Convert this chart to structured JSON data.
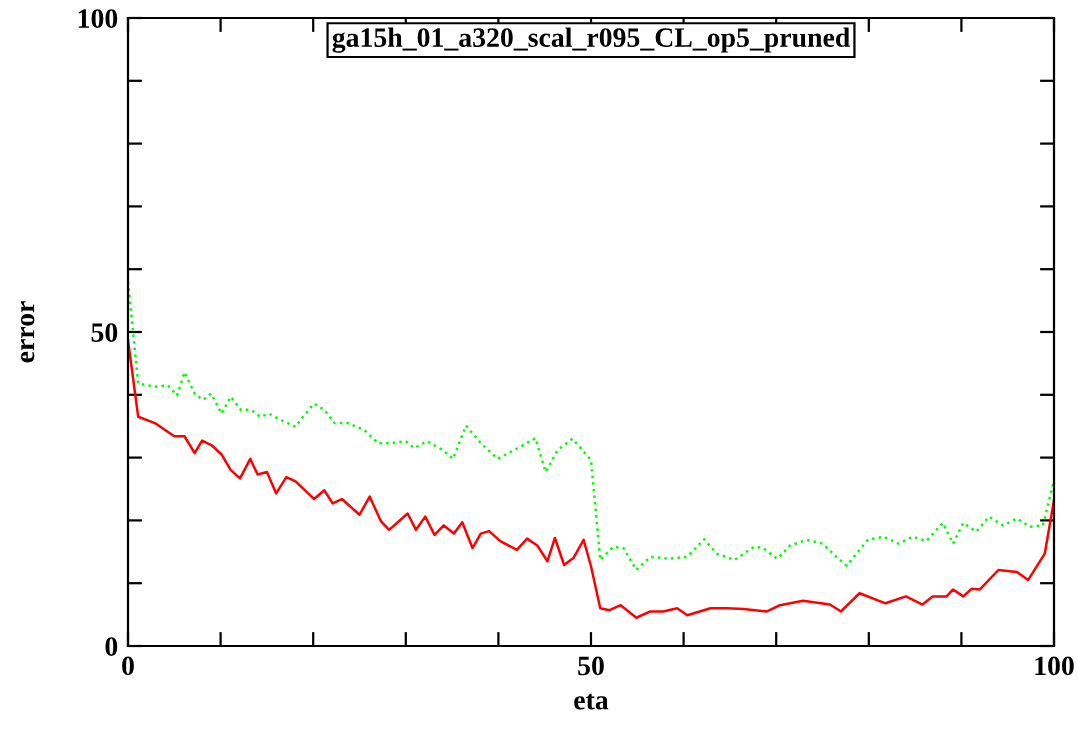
{
  "chart_data": {
    "type": "line",
    "title": "ga15h_01_a320_scal_r095_CL_op5_pruned",
    "xlabel": "eta",
    "ylabel": "error",
    "xlim": [
      0,
      100
    ],
    "ylim": [
      0,
      100
    ],
    "xticks": [
      0,
      {
        "value": 10,
        "label": null
      },
      {
        "value": 20,
        "label": null
      },
      {
        "value": 30,
        "label": null
      },
      {
        "value": 40,
        "label": null
      },
      50,
      {
        "value": 60,
        "label": null
      },
      {
        "value": 70,
        "label": null
      },
      {
        "value": 80,
        "label": null
      },
      {
        "value": 90,
        "label": null
      },
      100
    ],
    "yticks": [
      0,
      {
        "value": 10,
        "label": null
      },
      {
        "value": 20,
        "label": null
      },
      {
        "value": 30,
        "label": null
      },
      {
        "value": 40,
        "label": null
      },
      50,
      {
        "value": 60,
        "label": null
      },
      {
        "value": 70,
        "label": null
      },
      {
        "value": 80,
        "label": null
      },
      {
        "value": 90,
        "label": null
      },
      100
    ],
    "grid": false,
    "series": [
      {
        "color": "#ff0000",
        "line_style": "solid",
        "x": [
          0,
          1.1,
          2.9,
          5.0,
          6.1,
          7.2,
          8.0,
          9.0,
          10.1,
          11.1,
          12.1,
          13.2,
          14.0,
          15.0,
          16.0,
          17.1,
          18.1,
          20.1,
          21.2,
          22.1,
          23.1,
          25.0,
          26.1,
          27.3,
          28.2,
          30.2,
          31.1,
          32.1,
          33.1,
          34.1,
          35.2,
          36.1,
          37.2,
          38.1,
          39.0,
          40.2,
          42.0,
          43.1,
          44.2,
          45.3,
          46.1,
          47.1,
          48.1,
          49.2,
          50.0,
          51.0,
          52.0,
          53.2,
          54.9,
          56.4,
          57.8,
          59.3,
          60.4,
          62.9,
          64.7,
          66.5,
          69.0,
          70.4,
          72.9,
          75.8,
          77.0,
          79.0,
          81.8,
          84.0,
          85.8,
          86.9,
          88.4,
          89.1,
          90.2,
          91.1,
          92.0,
          94.0,
          96.0,
          97.2,
          99.0,
          100
        ],
        "values": [
          48.7,
          36.5,
          35.5,
          33.4,
          33.4,
          30.7,
          32.7,
          32.0,
          30.5,
          28.0,
          26.7,
          29.8,
          27.3,
          27.7,
          24.3,
          26.9,
          26.2,
          23.4,
          24.8,
          22.7,
          23.4,
          20.9,
          23.8,
          19.9,
          18.5,
          21.1,
          18.5,
          20.6,
          17.7,
          19.2,
          17.9,
          19.7,
          15.6,
          17.9,
          18.3,
          16.7,
          15.3,
          17.1,
          16.0,
          13.5,
          17.2,
          12.9,
          14.0,
          16.9,
          12.7,
          6.0,
          5.7,
          6.5,
          4.5,
          5.5,
          5.5,
          6.0,
          4.9,
          6.0,
          6.0,
          5.9,
          5.5,
          6.5,
          7.2,
          6.6,
          5.5,
          8.4,
          6.8,
          7.9,
          6.6,
          7.9,
          7.9,
          9.0,
          7.9,
          9.1,
          9.0,
          12.1,
          11.8,
          10.5,
          14.7,
          23.2
        ]
      },
      {
        "color": "#00ff00",
        "line_style": "dotted",
        "x": [
          0,
          1.1,
          2.9,
          4.3,
          5.3,
          6.1,
          7.2,
          8.1,
          9.0,
          10.1,
          11.1,
          12.2,
          13.3,
          14.3,
          15.2,
          16.5,
          18.1,
          19.0,
          20.1,
          21.2,
          22.3,
          23.7,
          25.5,
          27.0,
          28.4,
          30.0,
          30.9,
          32.3,
          34.0,
          35.1,
          36.5,
          38.1,
          39.9,
          41.7,
          44.0,
          45.1,
          46.4,
          48.0,
          50.0,
          51.0,
          52.4,
          53.5,
          54.9,
          56.4,
          58.5,
          60.4,
          62.2,
          63.6,
          65.5,
          67.6,
          68.6,
          70.1,
          71.5,
          73.3,
          75.0,
          76.5,
          77.6,
          79.9,
          81.6,
          83.2,
          84.8,
          86.2,
          88.0,
          89.1,
          90.2,
          91.6,
          93.0,
          94.5,
          96.0,
          97.4,
          98.8,
          100
        ],
        "values": [
          58,
          41.8,
          41.3,
          41.5,
          39.9,
          43.6,
          40.2,
          39.2,
          40.2,
          37.0,
          39.7,
          37.6,
          37.6,
          36.5,
          37.0,
          36.0,
          34.9,
          36.7,
          38.6,
          37.6,
          35.5,
          35.5,
          34.4,
          32.3,
          32.3,
          32.6,
          31.5,
          32.6,
          31.2,
          29.8,
          35.1,
          32.3,
          29.8,
          31.2,
          33.1,
          27.7,
          31.2,
          33.0,
          29.6,
          13.7,
          15.8,
          15.6,
          12.1,
          14.2,
          13.9,
          14.2,
          17.0,
          14.7,
          13.7,
          15.8,
          15.6,
          13.9,
          16.0,
          16.9,
          16.3,
          14.2,
          12.8,
          16.9,
          17.4,
          16.3,
          17.4,
          16.7,
          19.6,
          16.3,
          19.6,
          18.2,
          20.6,
          19.2,
          20.3,
          19.0,
          19.2,
          26.4
        ]
      }
    ]
  }
}
